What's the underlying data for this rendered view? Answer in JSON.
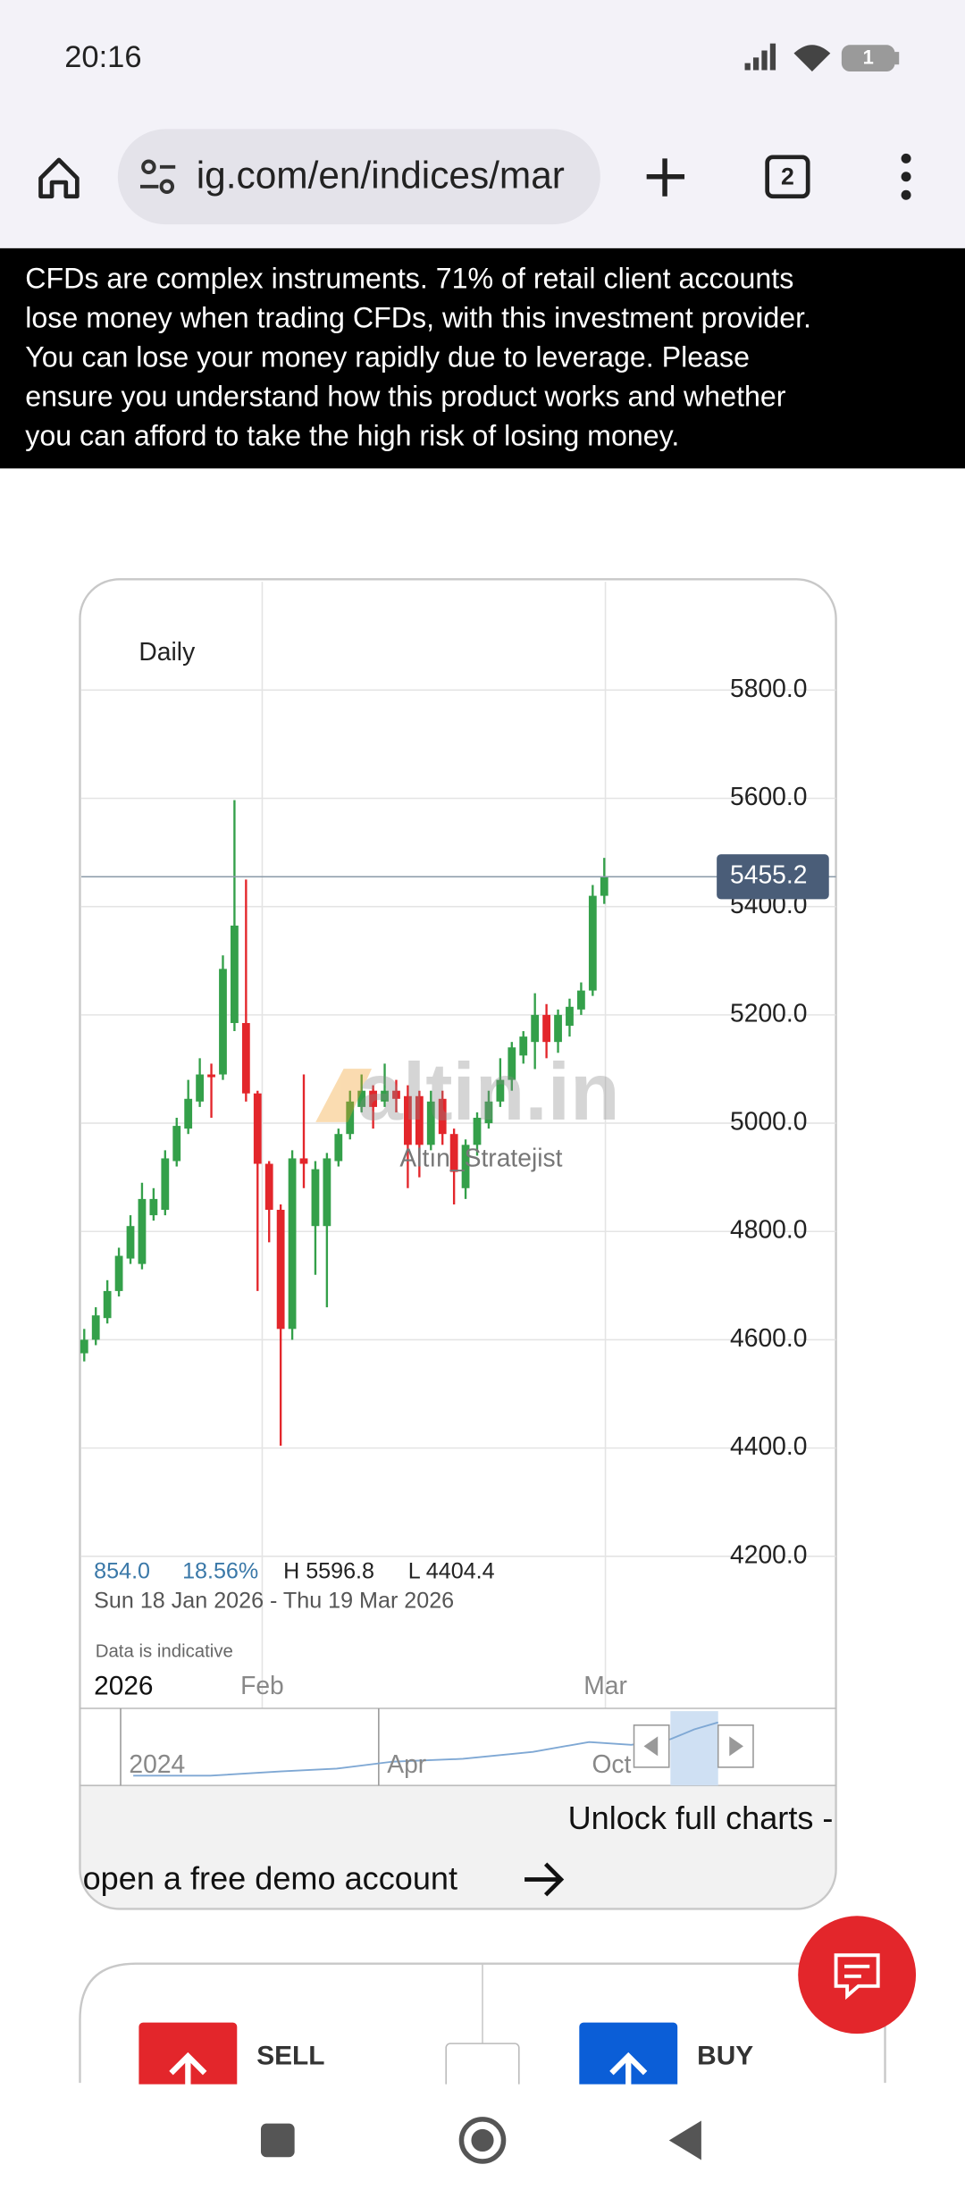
{
  "status_bar": {
    "time": "20:16",
    "battery": "1"
  },
  "browser": {
    "url": "ig.com/en/indices/mar",
    "tab_count": "2"
  },
  "risk_warning": {
    "lines": [
      "CFDs are complex instruments. 71% of retail client accounts",
      "lose money when trading CFDs, with this investment provider.",
      "You can lose your money rapidly due to leverage. Please",
      "ensure you understand how this product works and whether",
      "you can afford to take the high risk of losing money."
    ]
  },
  "chart_data": {
    "type": "candlestick",
    "label": "Daily",
    "open": [
      4575,
      4600,
      4640,
      4690,
      4750,
      4740,
      4830,
      4840,
      4930,
      4990,
      5040,
      5090,
      5090,
      5185,
      5185,
      5055,
      4925,
      4840,
      4620,
      4935,
      4810,
      4810,
      4930,
      4980,
      5030,
      5060,
      5040,
      5060,
      5050,
      5050,
      4960,
      5045,
      4980,
      4880,
      4960,
      5000,
      5040,
      5080,
      5125,
      5150,
      5200,
      5150,
      5180,
      5210,
      5245,
      5420
    ],
    "high": [
      4620,
      4660,
      4710,
      4770,
      4830,
      4890,
      4880,
      4950,
      5010,
      5080,
      5120,
      5110,
      5310,
      5596.8,
      5450,
      5060,
      4930,
      4850,
      4950,
      5090,
      4930,
      4945,
      4990,
      5060,
      5090,
      5070,
      5110,
      5080,
      5070,
      5060,
      5060,
      5060,
      4990,
      4970,
      5020,
      5060,
      5120,
      5150,
      5170,
      5240,
      5220,
      5210,
      5230,
      5260,
      5440,
      5490
    ],
    "low": [
      4560,
      4590,
      4630,
      4680,
      4740,
      4730,
      4820,
      4830,
      4920,
      4980,
      5030,
      5010,
      5080,
      5170,
      5040,
      4690,
      4780,
      4404.4,
      4600,
      4880,
      4720,
      4660,
      4920,
      4970,
      5020,
      4990,
      5030,
      5020,
      4880,
      4900,
      4950,
      4960,
      4850,
      4860,
      4940,
      4990,
      5030,
      5060,
      5110,
      5100,
      5120,
      5130,
      5160,
      5200,
      5235,
      5405
    ],
    "close": [
      4600,
      4645,
      4690,
      4755,
      4810,
      4860,
      4860,
      4935,
      4995,
      5045,
      5090,
      5085,
      5285,
      5365,
      5055,
      4925,
      4840,
      4620,
      4935,
      4925,
      4915,
      4935,
      4980,
      5040,
      5060,
      5030,
      5060,
      5045,
      4960,
      4960,
      5040,
      4980,
      4910,
      4960,
      5010,
      5040,
      5080,
      5140,
      5160,
      5200,
      5150,
      5200,
      5215,
      5245,
      5420,
      5455.2
    ],
    "up_color": "#34a04a",
    "down_color": "#e3262b",
    "ylim": [
      4000,
      6000
    ],
    "yticks": [
      {
        "value": 4200,
        "label": "4200.0"
      },
      {
        "value": 4400,
        "label": "4400.0"
      },
      {
        "value": 4600,
        "label": "4600.0"
      },
      {
        "value": 4800,
        "label": "4800.0"
      },
      {
        "value": 5000,
        "label": "5000.0"
      },
      {
        "value": 5200,
        "label": "5200.0"
      },
      {
        "value": 5400,
        "label": "5400.0"
      },
      {
        "value": 5600,
        "label": "5600.0"
      },
      {
        "value": 5800,
        "label": "5800.0"
      }
    ],
    "xlim": [
      -0.25,
      65.05
    ],
    "xticks": [
      {
        "value": 15.4,
        "label": "Feb"
      },
      {
        "value": 45.1,
        "label": "Mar"
      }
    ],
    "grid": true,
    "last_price": 5455.2,
    "year_label": "2026",
    "stats": {
      "change": "854.0",
      "change_pct": "18.56%",
      "high": "H 5596.8",
      "low": "L 4404.4",
      "range": "Sun 18 Jan 2026 - Thu 19 Mar 2026",
      "note": "Data is indicative"
    },
    "watermark": {
      "logo": "altin.in",
      "author": "Altın_Stratejist"
    },
    "navigator": {
      "labels": [
        "2024",
        "Apr",
        "Oct"
      ]
    }
  },
  "chart_panel": {
    "cta_line1": "Unlock full charts -",
    "cta_line2": "open a free demo account"
  },
  "trade_panel": {
    "sell": "SELL",
    "buy": "BUY"
  }
}
